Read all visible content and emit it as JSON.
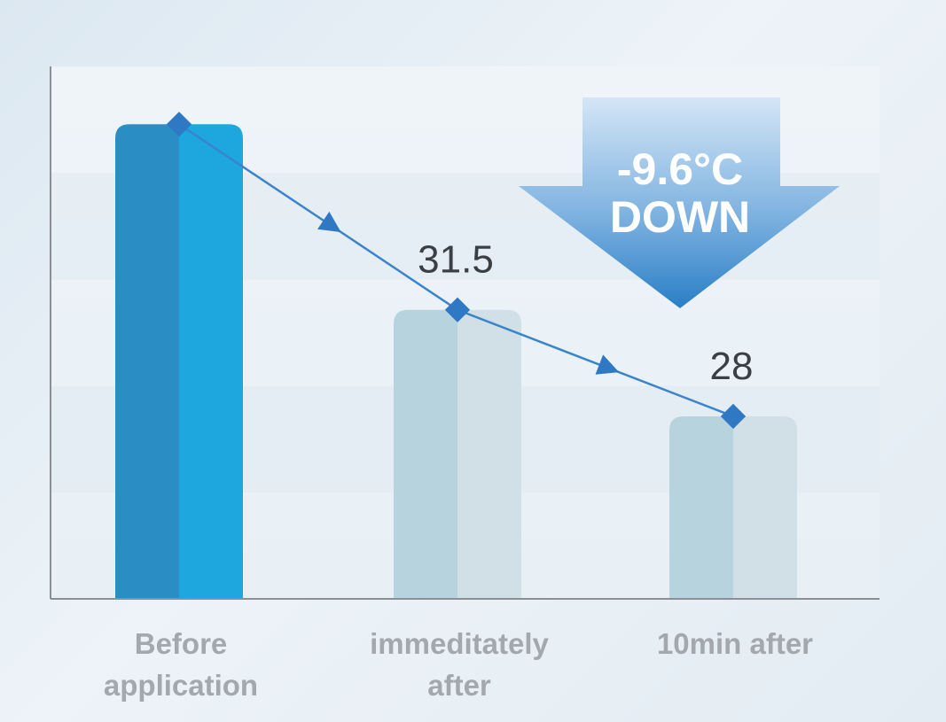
{
  "chart_data": {
    "type": "bar",
    "categories": [
      [
        "Before",
        "application"
      ],
      [
        "immeditately",
        "after"
      ],
      [
        "10min after"
      ]
    ],
    "values": [
      37.6,
      31.5,
      28
    ],
    "data_labels": [
      "",
      "31.5",
      "28"
    ],
    "highlight_index": 0,
    "ylim": [
      22,
      39.5
    ],
    "line_overlay": true,
    "grid": true,
    "badge": {
      "line1": "-9.6°C",
      "line2": "DOWN"
    },
    "colors": {
      "highlight_left": "#2a8dc4",
      "highlight_right": "#1ea6de",
      "muted_left": "#b7d3de",
      "muted_right": "#d1dfe6",
      "line": "#3a84cc",
      "marker": "#2f78c4",
      "badge_top": "#d0e4f5",
      "badge_bottom": "#2f84cb",
      "axis": "#8a9096"
    }
  }
}
